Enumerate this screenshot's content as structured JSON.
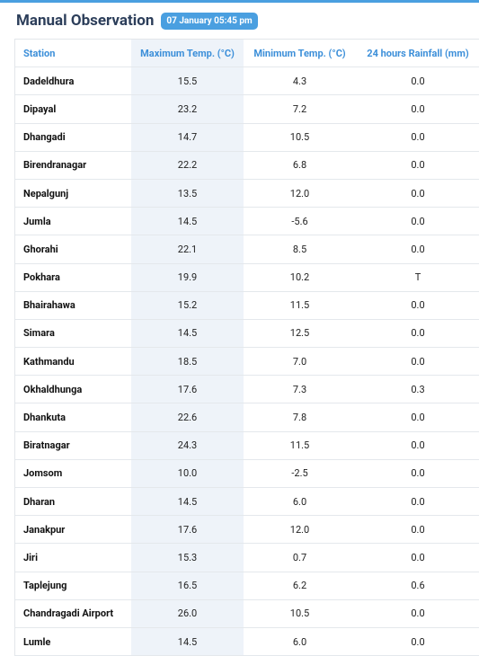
{
  "header": {
    "title": "Manual Observation",
    "badge": "07 January 05:45 pm"
  },
  "table": {
    "columns": [
      "Station",
      "Maximum Temp. (°C)",
      "Minimum Temp. (°C)",
      "24 hours Rainfall (mm)"
    ],
    "rows": [
      [
        "Dadeldhura",
        "15.5",
        "4.3",
        "0.0"
      ],
      [
        "Dipayal",
        "23.2",
        "7.2",
        "0.0"
      ],
      [
        "Dhangadi",
        "14.7",
        "10.5",
        "0.0"
      ],
      [
        "Birendranagar",
        "22.2",
        "6.8",
        "0.0"
      ],
      [
        "Nepalgunj",
        "13.5",
        "12.0",
        "0.0"
      ],
      [
        "Jumla",
        "14.5",
        "-5.6",
        "0.0"
      ],
      [
        "Ghorahi",
        "22.1",
        "8.5",
        "0.0"
      ],
      [
        "Pokhara",
        "19.9",
        "10.2",
        "T"
      ],
      [
        "Bhairahawa",
        "15.2",
        "11.5",
        "0.0"
      ],
      [
        "Simara",
        "14.5",
        "12.5",
        "0.0"
      ],
      [
        "Kathmandu",
        "18.5",
        "7.0",
        "0.0"
      ],
      [
        "Okhaldhunga",
        "17.6",
        "7.3",
        "0.3"
      ],
      [
        "Dhankuta",
        "22.6",
        "7.8",
        "0.0"
      ],
      [
        "Biratnagar",
        "24.3",
        "11.5",
        "0.0"
      ],
      [
        "Jomsom",
        "10.0",
        "-2.5",
        "0.0"
      ],
      [
        "Dharan",
        "14.5",
        "6.0",
        "0.0"
      ],
      [
        "Janakpur",
        "17.6",
        "12.0",
        "0.0"
      ],
      [
        "Jiri",
        "15.3",
        "0.7",
        "0.0"
      ],
      [
        "Taplejung",
        "16.5",
        "6.2",
        "0.6"
      ],
      [
        "Chandragadi Airport",
        "26.0",
        "10.5",
        "0.0"
      ],
      [
        "Lumle",
        "14.5",
        "6.0",
        "0.0"
      ]
    ]
  }
}
